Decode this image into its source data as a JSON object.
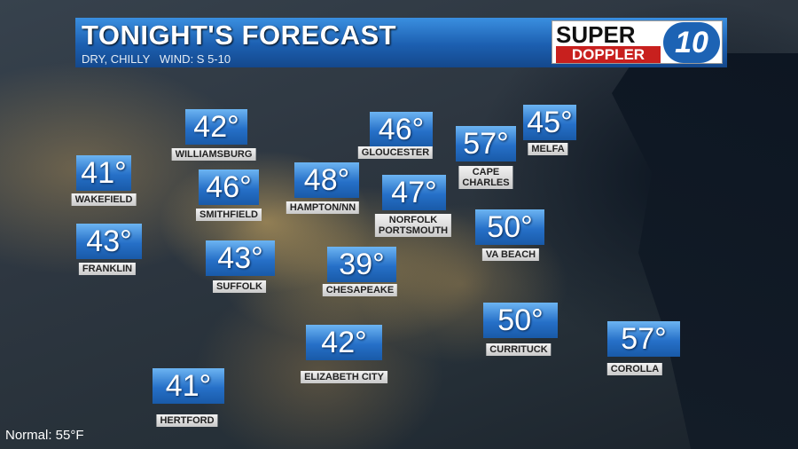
{
  "header": {
    "title": "TONIGHT'S FORECAST",
    "subtitle": "DRY, CHILLY   WIND: S 5-10"
  },
  "logo": {
    "line1": "SUPER",
    "line2": "DOPPLER",
    "number": "10"
  },
  "locations": [
    {
      "temp": "42°",
      "label": [
        "WILLIAMSBURG"
      ]
    },
    {
      "temp": "41°",
      "label": [
        "WAKEFIELD"
      ]
    },
    {
      "temp": "46°",
      "label": [
        "SMITHFIELD"
      ]
    },
    {
      "temp": "48°",
      "label": [
        "HAMPTON/NN"
      ]
    },
    {
      "temp": "46°",
      "label": [
        "GLOUCESTER"
      ]
    },
    {
      "temp": "57°",
      "label": [
        "CAPE",
        "CHARLES"
      ]
    },
    {
      "temp": "45°",
      "label": [
        "MELFA"
      ]
    },
    {
      "temp": "47°",
      "label": [
        "NORFOLK",
        "PORTSMOUTH"
      ]
    },
    {
      "temp": "50°",
      "label": [
        "VA BEACH"
      ]
    },
    {
      "temp": "43°",
      "label": [
        "FRANKLIN"
      ]
    },
    {
      "temp": "43°",
      "label": [
        "SUFFOLK"
      ]
    },
    {
      "temp": "39°",
      "label": [
        "CHESAPEAKE"
      ]
    },
    {
      "temp": "50°",
      "label": [
        "CURRITUCK"
      ]
    },
    {
      "temp": "57°",
      "label": [
        "COROLLA"
      ]
    },
    {
      "temp": "42°",
      "label": [
        "ELIZABETH CITY"
      ]
    },
    {
      "temp": "41°",
      "label": [
        "HERTFORD"
      ]
    }
  ],
  "footer": {
    "normal": "Normal: 55°F"
  }
}
